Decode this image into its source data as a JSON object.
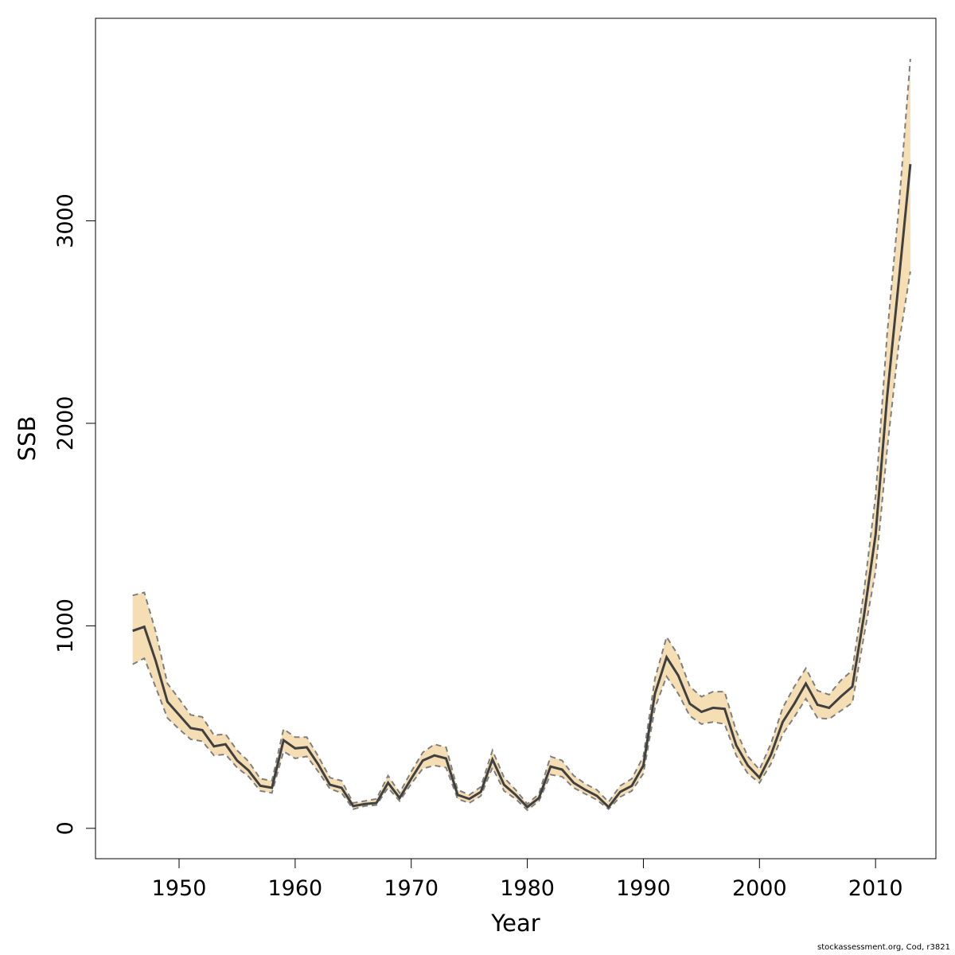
{
  "chart_data": {
    "type": "line",
    "xlabel": "Year",
    "ylabel": "SSB",
    "xlim": [
      1942.8,
      2015.2
    ],
    "ylim": [
      -150,
      4000
    ],
    "x_ticks": [
      1950,
      1960,
      1970,
      1980,
      1990,
      2000,
      2010
    ],
    "y_ticks": [
      0,
      1000,
      2000,
      3000
    ],
    "grid": false,
    "legend": "none",
    "band_color": "#F5DEB3",
    "line_color": "#404040",
    "bound_color": "#7f7f7f",
    "x": [
      1946,
      1947,
      1948,
      1949,
      1950,
      1951,
      1952,
      1953,
      1954,
      1955,
      1956,
      1957,
      1958,
      1959,
      1960,
      1961,
      1962,
      1963,
      1964,
      1965,
      1966,
      1967,
      1968,
      1969,
      1970,
      1971,
      1972,
      1973,
      1974,
      1975,
      1976,
      1977,
      1978,
      1979,
      1980,
      1981,
      1982,
      1983,
      1984,
      1985,
      1986,
      1987,
      1988,
      1989,
      1990,
      1991,
      1992,
      1993,
      1994,
      1995,
      1996,
      1997,
      1998,
      1999,
      2000,
      2001,
      2002,
      2003,
      2004,
      2005,
      2006,
      2007,
      2008,
      2009,
      2010,
      2011,
      2012,
      2013
    ],
    "series": [
      {
        "role": "estimate",
        "values": [
          975,
          995,
          825,
          625,
          560,
          495,
          485,
          405,
          415,
          335,
          285,
          210,
          200,
          435,
          395,
          400,
          315,
          215,
          200,
          110,
          120,
          125,
          225,
          150,
          245,
          335,
          360,
          345,
          165,
          145,
          180,
          340,
          215,
          165,
          105,
          150,
          305,
          290,
          225,
          190,
          160,
          105,
          180,
          210,
          310,
          665,
          845,
          755,
          615,
          575,
          595,
          590,
          410,
          310,
          250,
          365,
          525,
          615,
          715,
          610,
          595,
          650,
          700,
          1050,
          1450,
          2130,
          2700,
          3280
        ]
      },
      {
        "role": "upper",
        "values": [
          1150,
          1165,
          970,
          715,
          640,
          560,
          550,
          460,
          465,
          385,
          330,
          245,
          235,
          490,
          450,
          450,
          355,
          250,
          235,
          125,
          135,
          145,
          260,
          175,
          280,
          375,
          415,
          400,
          190,
          165,
          205,
          385,
          250,
          190,
          120,
          170,
          355,
          335,
          260,
          220,
          190,
          130,
          210,
          245,
          355,
          740,
          945,
          855,
          700,
          650,
          675,
          675,
          480,
          355,
          290,
          420,
          595,
          700,
          790,
          680,
          660,
          730,
          780,
          1170,
          1640,
          2440,
          3060,
          3800
        ]
      },
      {
        "role": "lower",
        "values": [
          810,
          840,
          695,
          545,
          490,
          440,
          430,
          360,
          365,
          300,
          255,
          185,
          175,
          380,
          345,
          355,
          280,
          195,
          175,
          95,
          110,
          115,
          200,
          135,
          220,
          295,
          310,
          300,
          145,
          125,
          160,
          300,
          185,
          145,
          90,
          135,
          265,
          255,
          200,
          170,
          140,
          95,
          155,
          185,
          270,
          595,
          750,
          665,
          555,
          515,
          525,
          515,
          360,
          270,
          225,
          320,
          465,
          550,
          640,
          545,
          540,
          580,
          620,
          950,
          1270,
          1870,
          2390,
          2750
        ]
      }
    ]
  },
  "footer": {
    "credit": "stockassessment.org, Cod, r3821"
  }
}
